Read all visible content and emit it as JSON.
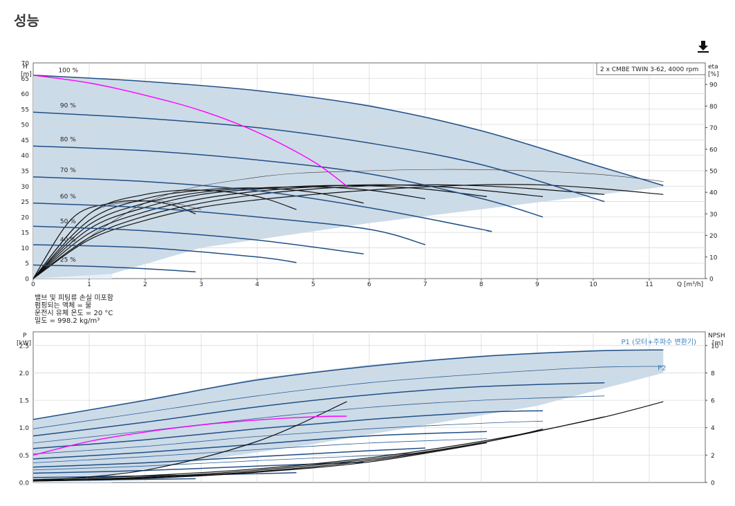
{
  "page": {
    "title": "성능"
  },
  "download_icon": "download-icon",
  "notes": [
    "밸브 및 피팅류 손실 미포함",
    "펌핑되는 액체 = 물",
    "운전시 유체 온도 = 20 °C",
    "밀도 = 998.2 kg/m³"
  ],
  "colors": {
    "envelope": "#ccdbe8",
    "envelope_light": "#e6f0fa",
    "curve_blue": "#1f4e85",
    "duty_magenta": "#ff00ff",
    "efficiency": "#111111",
    "grid": "#d9d9d9"
  },
  "chart_data": [
    {
      "type": "line",
      "name": "head-chart",
      "legend_box": "2 x CMBE TWIN 3-62, 4000 rpm",
      "ylabel_left": [
        "H",
        "[m]"
      ],
      "ylabel_right": [
        "eta",
        "[%]"
      ],
      "xlabel": "Q [m³/h]",
      "xlim": [
        0,
        12
      ],
      "ylim": [
        0,
        70
      ],
      "eta_lim": [
        0,
        100
      ],
      "x_ticks": [
        0,
        1,
        2,
        3,
        4,
        5,
        6,
        7,
        8,
        9,
        10,
        11
      ],
      "y_ticks": [
        0,
        5,
        10,
        15,
        20,
        25,
        30,
        35,
        40,
        45,
        50,
        55,
        60,
        65,
        70
      ],
      "eta_ticks": [
        0,
        10,
        20,
        30,
        40,
        50,
        60,
        70,
        80,
        90
      ],
      "speed_labels": [
        {
          "text": "100 %",
          "x": 0.45,
          "y": 67
        },
        {
          "text": "90 %",
          "x": 0.48,
          "y": 55.5
        },
        {
          "text": "80 %",
          "x": 0.48,
          "y": 44.5
        },
        {
          "text": "70 %",
          "x": 0.48,
          "y": 34.5
        },
        {
          "text": "60 %",
          "x": 0.48,
          "y": 26
        },
        {
          "text": "50 %",
          "x": 0.48,
          "y": 18
        },
        {
          "text": "40 %",
          "x": 0.48,
          "y": 12
        },
        {
          "text": "25 %",
          "x": 0.48,
          "y": 5.5
        }
      ],
      "operating_area": [
        [
          0,
          66
        ],
        [
          2.1,
          63.8
        ],
        [
          4,
          61
        ],
        [
          6,
          56.5
        ],
        [
          8,
          48
        ],
        [
          9.5,
          40
        ],
        [
          11.25,
          30.2
        ],
        [
          11.25,
          29.8
        ],
        [
          6,
          18
        ],
        [
          3,
          10
        ],
        [
          1.4,
          1.5
        ],
        [
          0,
          0
        ]
      ],
      "speed_curves": [
        {
          "name": "100 %",
          "q": [
            0,
            2,
            4,
            6,
            8,
            10,
            11.25
          ],
          "h": [
            66,
            64,
            61,
            56,
            48,
            37,
            30.2
          ]
        },
        {
          "name": "90 %",
          "q": [
            0,
            2,
            4,
            6,
            8,
            10.2
          ],
          "h": [
            54,
            52,
            49,
            44,
            37,
            25
          ]
        },
        {
          "name": "80 %",
          "q": [
            0,
            2,
            4,
            6,
            8,
            9.1
          ],
          "h": [
            43,
            41.5,
            38.5,
            34,
            26,
            20
          ]
        },
        {
          "name": "70 %",
          "q": [
            0,
            2,
            4,
            6,
            8,
            8.1
          ],
          "h": [
            33,
            31.5,
            28.5,
            23,
            16,
            15.5
          ]
        },
        {
          "name": "60 %",
          "q": [
            0,
            2,
            4,
            6,
            7
          ],
          "h": [
            24.5,
            23,
            20,
            16,
            11
          ]
        },
        {
          "name": "50 %",
          "q": [
            0,
            2,
            4,
            5.9
          ],
          "h": [
            17,
            15.5,
            12.5,
            8
          ]
        },
        {
          "name": "40 %",
          "q": [
            0,
            2,
            4,
            4.7
          ],
          "h": [
            11,
            10,
            7,
            5.2
          ]
        },
        {
          "name": "25 %",
          "q": [
            0,
            1,
            2,
            2.9
          ],
          "h": [
            4.4,
            4,
            3.2,
            2.2
          ]
        }
      ],
      "duty_curve": {
        "q": [
          0,
          1,
          2,
          3,
          4,
          5,
          5.6
        ],
        "h": [
          66,
          63.5,
          59.5,
          54.5,
          47.5,
          38,
          30
        ]
      },
      "efficiency_curves": [
        {
          "q": [
            0,
            1,
            2,
            3,
            4,
            5,
            6,
            7,
            8,
            9,
            10,
            11.25
          ],
          "eta": [
            0,
            18,
            27,
            33,
            36.5,
            39,
            41,
            42.5,
            43.5,
            43.5,
            42,
            39
          ]
        },
        {
          "q": [
            0,
            1,
            2,
            3,
            4,
            5,
            6,
            7,
            8,
            9,
            10.2
          ],
          "eta": [
            0,
            19,
            29,
            35,
            39,
            41.5,
            43,
            43.5,
            43,
            41.5,
            39
          ]
        },
        {
          "q": [
            0,
            1,
            2,
            3,
            4,
            5,
            6,
            7,
            8,
            9.1
          ],
          "eta": [
            0,
            21,
            31,
            37,
            40.5,
            42.5,
            43.5,
            43,
            41,
            38
          ]
        },
        {
          "q": [
            0,
            1,
            2,
            3,
            4,
            5,
            6,
            7,
            8.1
          ],
          "eta": [
            0,
            23,
            33,
            39,
            41.5,
            43,
            43,
            41.5,
            38
          ]
        },
        {
          "q": [
            0,
            1,
            2,
            3,
            4,
            5,
            6,
            7
          ],
          "eta": [
            0,
            25,
            35,
            40,
            42,
            42.5,
            41,
            37
          ]
        },
        {
          "q": [
            0,
            1,
            2,
            3,
            4,
            5,
            5.9
          ],
          "eta": [
            0,
            27,
            37,
            41,
            42,
            40,
            35
          ]
        },
        {
          "q": [
            0,
            1,
            2,
            3,
            4,
            4.7
          ],
          "eta": [
            0,
            30,
            39,
            41,
            38,
            32
          ]
        },
        {
          "q": [
            0,
            0.7,
            1.4,
            2,
            2.5,
            2.9
          ],
          "eta": [
            0,
            28,
            35,
            36,
            34,
            30
          ]
        }
      ],
      "thin_curves": [
        {
          "q": [
            0,
            2,
            4,
            6,
            8,
            10,
            11.25
          ],
          "eta": [
            0,
            35,
            47,
            50,
            50.5,
            48.5,
            45
          ]
        },
        {
          "q": [
            0,
            1,
            2,
            2.5,
            3
          ],
          "eta": [
            0,
            30,
            36,
            35,
            32
          ]
        }
      ]
    },
    {
      "type": "line",
      "name": "power-chart",
      "ylabel_left": [
        "P",
        "[kW]"
      ],
      "ylabel_right": [
        "NPSH",
        "[m]"
      ],
      "xlim": [
        0,
        12
      ],
      "ylim": [
        0,
        2.75
      ],
      "npsh_lim": [
        0,
        11
      ],
      "y_ticks": [
        0.0,
        0.5,
        1.0,
        1.5,
        2.0,
        2.5
      ],
      "y_tick_labels": [
        "0.0",
        "0.5",
        "1.0",
        "1.5",
        "2.0",
        "2.5"
      ],
      "npsh_ticks": [
        0,
        2,
        4,
        6,
        8,
        10
      ],
      "series_labels": [
        {
          "text": "P1 (모터+주파수 변환기)",
          "x": 10.5,
          "y": 2.52,
          "color": "#3a7fc0"
        },
        {
          "text": "P2",
          "x": 11.15,
          "y": 2.05,
          "color": "#3a7fc0"
        }
      ],
      "operating_area": [
        [
          0,
          1.15
        ],
        [
          2.1,
          1.53
        ],
        [
          4,
          1.9
        ],
        [
          6,
          2.15
        ],
        [
          8,
          2.32
        ],
        [
          10,
          2.42
        ],
        [
          11.25,
          2.42
        ],
        [
          11.25,
          2.0
        ],
        [
          9,
          1.4
        ],
        [
          7,
          1.05
        ],
        [
          5,
          0.7
        ],
        [
          3,
          0.4
        ],
        [
          1.4,
          0.15
        ],
        [
          0,
          0.05
        ]
      ],
      "p1_curves": [
        {
          "q": [
            0,
            2,
            4,
            6,
            8,
            10,
            11.25
          ],
          "p": [
            1.15,
            1.5,
            1.87,
            2.12,
            2.3,
            2.4,
            2.42
          ]
        },
        {
          "q": [
            0,
            2,
            4,
            6,
            8,
            10.2
          ],
          "p": [
            0.85,
            1.1,
            1.38,
            1.6,
            1.75,
            1.82
          ]
        },
        {
          "q": [
            0,
            2,
            4,
            6,
            8,
            9.1
          ],
          "p": [
            0.62,
            0.78,
            0.98,
            1.15,
            1.28,
            1.31
          ]
        },
        {
          "q": [
            0,
            2,
            4,
            6,
            8.1
          ],
          "p": [
            0.43,
            0.55,
            0.7,
            0.85,
            0.93
          ]
        },
        {
          "q": [
            0,
            2,
            4,
            6,
            7
          ],
          "p": [
            0.28,
            0.36,
            0.47,
            0.58,
            0.63
          ]
        },
        {
          "q": [
            0,
            2,
            4,
            5.9
          ],
          "p": [
            0.17,
            0.22,
            0.3,
            0.37
          ]
        },
        {
          "q": [
            0,
            2,
            4,
            4.7
          ],
          "p": [
            0.09,
            0.12,
            0.16,
            0.18
          ]
        },
        {
          "q": [
            0,
            1.5,
            2.9
          ],
          "p": [
            0.03,
            0.05,
            0.07
          ]
        }
      ],
      "p2_curves": [
        {
          "q": [
            0,
            2,
            4,
            6,
            8,
            10,
            11.25
          ],
          "p": [
            0.98,
            1.28,
            1.58,
            1.82,
            1.98,
            2.1,
            2.12
          ]
        },
        {
          "q": [
            0,
            2,
            4,
            6,
            8,
            10.2
          ],
          "p": [
            0.72,
            0.94,
            1.17,
            1.37,
            1.5,
            1.58
          ]
        },
        {
          "q": [
            0,
            2,
            4,
            6,
            8,
            9.1
          ],
          "p": [
            0.52,
            0.66,
            0.84,
            0.98,
            1.08,
            1.12
          ]
        },
        {
          "q": [
            0,
            2,
            4,
            6,
            8.1
          ],
          "p": [
            0.36,
            0.47,
            0.6,
            0.72,
            0.8
          ]
        },
        {
          "q": [
            0,
            2,
            4,
            6,
            7
          ],
          "p": [
            0.23,
            0.3,
            0.4,
            0.49,
            0.54
          ]
        }
      ],
      "duty_curve": {
        "q": [
          0,
          1,
          2,
          3,
          4,
          5,
          5.6
        ],
        "p": [
          0.5,
          0.75,
          0.92,
          1.05,
          1.14,
          1.2,
          1.21
        ]
      },
      "npsh_curves": [
        {
          "q": [
            0,
            2,
            4,
            6,
            8,
            10,
            11.25
          ],
          "npsh": [
            0.2,
            0.5,
            1.0,
            1.8,
            3.0,
            4.6,
            5.9
          ]
        },
        {
          "q": [
            0,
            2,
            4,
            6,
            8,
            10.2
          ],
          "npsh": [
            0.15,
            0.4,
            0.9,
            1.7,
            2.9,
            4.8
          ]
        },
        {
          "q": [
            0,
            2,
            4,
            6,
            8,
            9.1
          ],
          "npsh": [
            0.12,
            0.35,
            0.8,
            1.6,
            2.9,
            3.9
          ]
        },
        {
          "q": [
            0,
            2,
            4,
            6,
            8.1
          ],
          "npsh": [
            0.1,
            0.3,
            0.75,
            1.5,
            2.9
          ]
        },
        {
          "q": [
            0,
            2,
            4,
            5.6
          ],
          "npsh": [
            0.1,
            0.9,
            3.0,
            5.9
          ]
        }
      ]
    }
  ]
}
